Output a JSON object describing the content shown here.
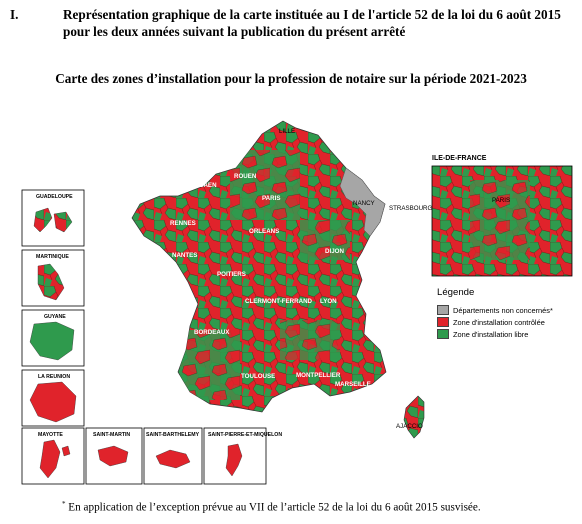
{
  "heading": {
    "number": "I.",
    "text": "Représentation graphique de la carte instituée au I de l'article 52 de la loi du 6 août 2015 pour les deux années suivant la publication du présent arrêté"
  },
  "subtitle": "Carte des zones d’installation pour la profession de notaire sur la période 2021-2023",
  "inset_idf_title": "ILE-DE-FRANCE",
  "legend": {
    "title": "Légende",
    "items": [
      {
        "label": "Départements non concernés*",
        "color": "#a6a6a6"
      },
      {
        "label": "Zone d'installation contrôlée",
        "color": "#e0232b"
      },
      {
        "label": "Zone d'installation libre",
        "color": "#2f9a4d"
      }
    ]
  },
  "cities": {
    "lille": "LILLE",
    "rouen": "ROUEN",
    "caen": "CAEN",
    "paris": "PARIS",
    "nancy": "NANCY",
    "strasbourg": "STRASBOURG",
    "rennes": "RENNES",
    "orleans": "ORLEANS",
    "dijon": "DIJON",
    "nantes": "NANTES",
    "poitiers": "POITIERS",
    "clermont": "CLERMONT-FERRAND",
    "lyon": "LYON",
    "bordeaux": "BORDEAUX",
    "toulouse": "TOULOUSE",
    "montpellier": "MONTPELLIER",
    "marseille": "MARSEILLE",
    "ajaccio": "AJACCIO",
    "paris_inset": "PARIS"
  },
  "overseas": {
    "guadeloupe": "GUADELOUPE",
    "martinique": "MARTINIQUE",
    "guyane": "GUYANE",
    "la_reunion": "LA REUNION",
    "mayotte": "MAYOTTE",
    "saint_martin": "SAINT-MARTIN",
    "saint_barthelemy": "SAINT-BARTHELEMY",
    "saint_pierre": "SAINT-PIERRE-ET-MIQUELON"
  },
  "colors": {
    "controlled": "#e0232b",
    "free": "#2f9a4d",
    "excluded": "#a6a6a6"
  },
  "footnote": "En application de l’exception prévue au VII de l’article 52 de la loi du 6 août 2015 susvisée.",
  "footnote_mark": "*"
}
